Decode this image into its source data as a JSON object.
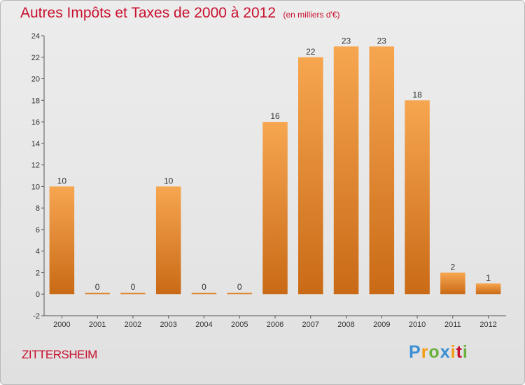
{
  "title": "Autres Impôts et Taxes de 2000 à 2012",
  "subtitle": "(en milliers d'€)",
  "commune": "ZITTERSHEIM",
  "logo": {
    "text": "Proxiti",
    "letters": [
      {
        "ch": "P",
        "color": "#3a8fd4"
      },
      {
        "ch": "r",
        "color": "#f39c12"
      },
      {
        "ch": "o",
        "color": "#6ab23e"
      },
      {
        "ch": "x",
        "color": "#3a8fd4"
      },
      {
        "ch": "i",
        "color": "#f39c12"
      },
      {
        "ch": "t",
        "color": "#c8102e"
      },
      {
        "ch": "i",
        "color": "#6ab23e"
      }
    ]
  },
  "chart_data": {
    "type": "bar",
    "categories": [
      "2000",
      "2001",
      "2002",
      "2003",
      "2004",
      "2005",
      "2006",
      "2007",
      "2008",
      "2009",
      "2010",
      "2011",
      "2012"
    ],
    "values": [
      10,
      0,
      0,
      10,
      0,
      0,
      16,
      22,
      23,
      23,
      18,
      2,
      1
    ],
    "data_labels": [
      "10",
      "0",
      "0",
      "10",
      "0",
      "0",
      "16",
      "22",
      "23",
      "23",
      "18",
      "2",
      "1"
    ],
    "ylim": [
      -2,
      24
    ],
    "yticks": [
      -2,
      0,
      2,
      4,
      6,
      8,
      10,
      12,
      14,
      16,
      18,
      20,
      22,
      24
    ],
    "ytick_labels": [
      "-2",
      "0",
      "2",
      "4",
      "6",
      "8",
      "10",
      "12",
      "14",
      "16",
      "18",
      "20",
      "22",
      "24"
    ],
    "grid": false,
    "bar_color_light": "#f7a650",
    "bar_color_dark": "#c96a16",
    "axis_color": "#555555",
    "label_color": "#333333"
  }
}
